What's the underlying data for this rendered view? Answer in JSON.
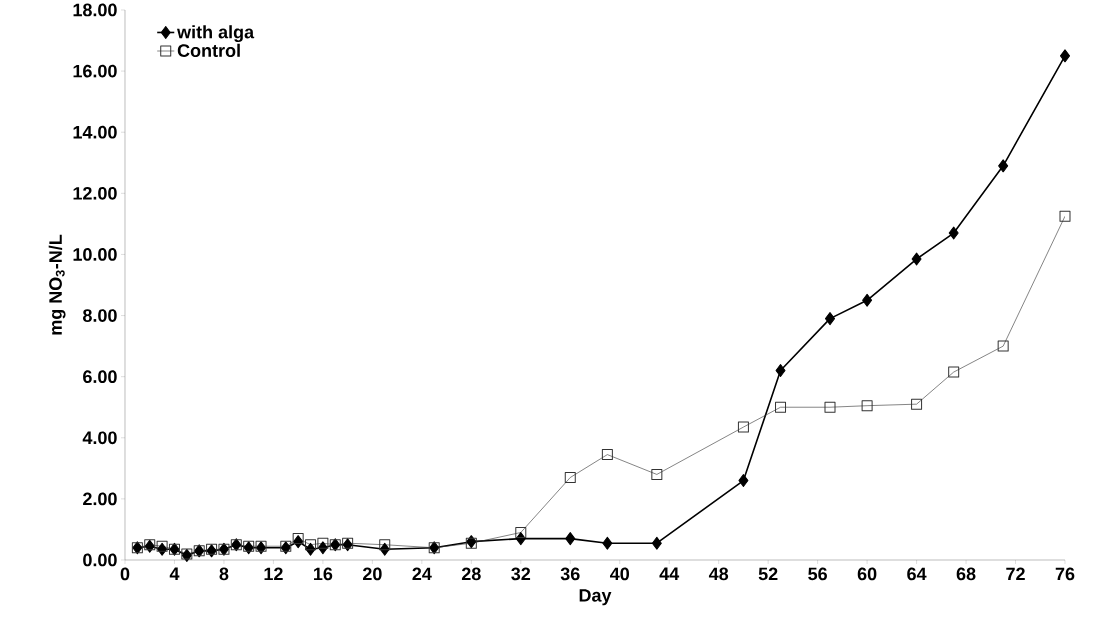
{
  "chart_data": {
    "type": "line",
    "xlabel": "Day",
    "ylabel": "mg NO$_{3}$-N/L",
    "xlim": [
      0,
      76
    ],
    "xticks": [
      0,
      4,
      8,
      12,
      16,
      20,
      24,
      28,
      32,
      36,
      40,
      44,
      48,
      52,
      56,
      60,
      64,
      68,
      72,
      76
    ],
    "ylim": [
      0,
      18
    ],
    "yticks": [
      {
        "value": 0,
        "label": "0.00"
      },
      {
        "value": 2,
        "label": "2.00"
      },
      {
        "value": 4,
        "label": "4.00"
      },
      {
        "value": 6,
        "label": "6.00"
      },
      {
        "value": 8,
        "label": "8.00"
      },
      {
        "value": 10,
        "label": "10.00"
      },
      {
        "value": 12,
        "label": "12.00"
      },
      {
        "value": 14,
        "label": "14.00"
      },
      {
        "value": 16,
        "label": "16.00"
      },
      {
        "value": 18,
        "label": "18.00"
      }
    ],
    "grid": false,
    "legend": "top left",
    "line_style": "solid",
    "series": [
      {
        "name": "with alga",
        "color": "#000000",
        "marker": "diamond",
        "x": [
          1,
          2,
          3,
          4,
          5,
          6,
          7,
          8,
          9,
          10,
          11,
          13,
          14,
          15,
          16,
          17,
          18,
          21,
          25,
          28,
          32,
          36,
          39,
          43,
          50,
          53,
          57,
          60,
          64,
          67,
          71,
          76
        ],
        "values": [
          0.4,
          0.45,
          0.35,
          0.35,
          0.15,
          0.3,
          0.3,
          0.35,
          0.5,
          0.4,
          0.4,
          0.4,
          0.6,
          0.35,
          0.4,
          0.5,
          0.5,
          0.35,
          0.4,
          0.6,
          0.7,
          0.7,
          0.55,
          0.55,
          2.6,
          6.2,
          7.9,
          8.5,
          9.85,
          10.7,
          12.9,
          16.5
        ]
      },
      {
        "name": "Control",
        "color": "#333333",
        "marker": "square",
        "x": [
          1,
          2,
          3,
          4,
          5,
          6,
          7,
          8,
          9,
          10,
          11,
          13,
          14,
          15,
          16,
          17,
          18,
          21,
          25,
          28,
          32,
          36,
          39,
          43,
          50,
          53,
          57,
          60,
          64,
          67,
          71,
          76
        ],
        "values": [
          0.4,
          0.5,
          0.45,
          0.35,
          0.2,
          0.3,
          0.35,
          0.35,
          0.5,
          0.45,
          0.45,
          0.45,
          0.7,
          0.5,
          0.55,
          0.5,
          0.55,
          0.5,
          0.4,
          0.55,
          0.9,
          2.7,
          3.45,
          2.8,
          4.35,
          5.0,
          5.0,
          5.05,
          5.1,
          6.15,
          7.0,
          11.25
        ]
      }
    ]
  }
}
